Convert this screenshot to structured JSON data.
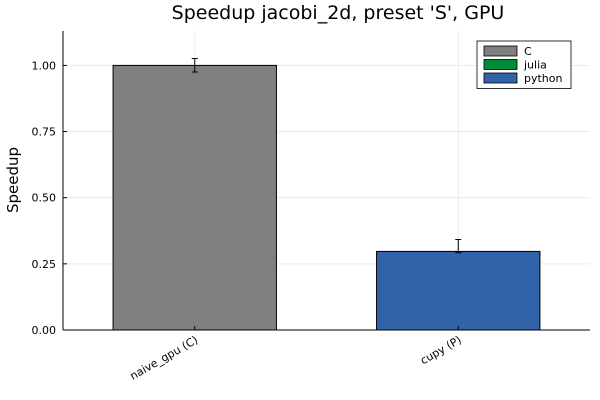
{
  "chart_data": {
    "type": "bar",
    "title": "Speedup jacobi_2d, preset 'S', GPU",
    "xlabel": "",
    "ylabel": "Speedup",
    "categories": [
      "naive_gpu (C)",
      "cupy (P)"
    ],
    "values": [
      1.0,
      0.297
    ],
    "error_low": [
      0.975,
      0.292
    ],
    "error_high": [
      1.026,
      0.342
    ],
    "bar_series": [
      "C",
      "python"
    ],
    "ylim": [
      0,
      1.13
    ],
    "yticks": [
      0.0,
      0.25,
      0.5,
      0.75,
      1.0
    ],
    "ytick_labels": [
      "0.00",
      "0.25",
      "0.50",
      "0.75",
      "1.00"
    ],
    "grid": true,
    "legend_position": "top-right",
    "legend": [
      {
        "name": "C",
        "color": "#808080"
      },
      {
        "name": "julia",
        "color": "#008b3a"
      },
      {
        "name": "python",
        "color": "#3063a8"
      }
    ]
  }
}
